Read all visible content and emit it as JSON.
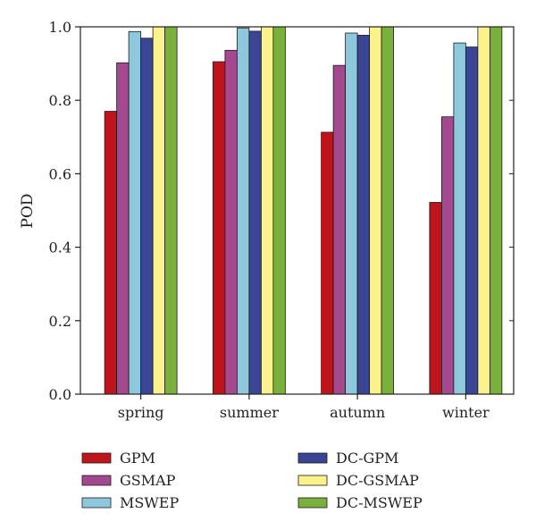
{
  "chart_data": {
    "type": "bar",
    "title": "",
    "xlabel": "",
    "ylabel": "POD",
    "ylim": [
      0,
      1.0
    ],
    "yticks": [
      "0.0",
      "0.2",
      "0.4",
      "0.6",
      "0.8",
      "1.0"
    ],
    "grid": false,
    "legend_position": "bottom",
    "categories": [
      "spring",
      "summer",
      "autumn",
      "winter"
    ],
    "series": [
      {
        "name": "GPM",
        "color": "#c0141c",
        "values": [
          0.77,
          0.905,
          0.713,
          0.522
        ]
      },
      {
        "name": "GSMAP",
        "color": "#a4488f",
        "values": [
          0.902,
          0.936,
          0.895,
          0.755
        ]
      },
      {
        "name": "MSWEP",
        "color": "#8ec8dc",
        "values": [
          0.987,
          0.997,
          0.983,
          0.956
        ]
      },
      {
        "name": "DC-GPM",
        "color": "#3a4596",
        "values": [
          0.969,
          0.988,
          0.977,
          0.945
        ]
      },
      {
        "name": "DC-GSMAP",
        "color": "#fbf28c",
        "values": [
          1.0,
          1.0,
          1.0,
          1.0
        ]
      },
      {
        "name": "DC-MSWEP",
        "color": "#79b13c",
        "values": [
          1.0,
          1.0,
          1.0,
          1.0
        ]
      }
    ]
  }
}
